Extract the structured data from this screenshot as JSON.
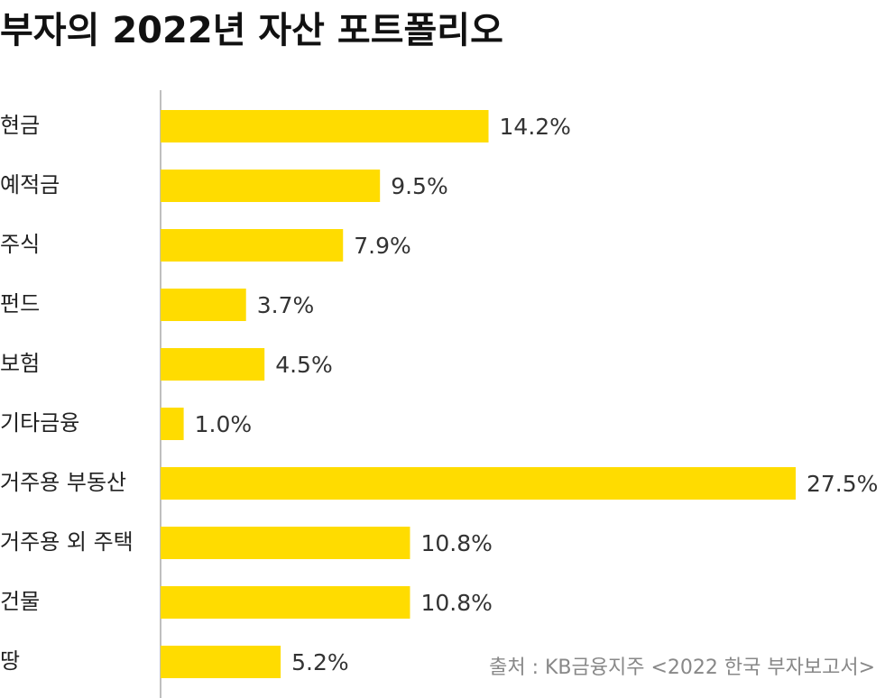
{
  "chart_data": {
    "type": "barh",
    "title": "부자의 2022년 자산 포트폴리오",
    "categories": [
      "현금",
      "예적금",
      "주식",
      "펀드",
      "보험",
      "기타금융",
      "거주용 부동산",
      "거주용 외 주택",
      "건물",
      "땅"
    ],
    "values": [
      14.2,
      9.5,
      7.9,
      3.7,
      4.5,
      1.0,
      27.5,
      10.8,
      10.8,
      5.2
    ],
    "value_labels": [
      "14.2%",
      "9.5%",
      "7.9%",
      "3.7%",
      "4.5%",
      "1.0%",
      "27.5%",
      "10.8%",
      "10.8%",
      "5.2%"
    ],
    "color": "#ffdc00",
    "xlim": [
      0,
      27.5
    ],
    "annotation": "출처 : KB금융지주 <2022 한국 부자보고서>"
  }
}
